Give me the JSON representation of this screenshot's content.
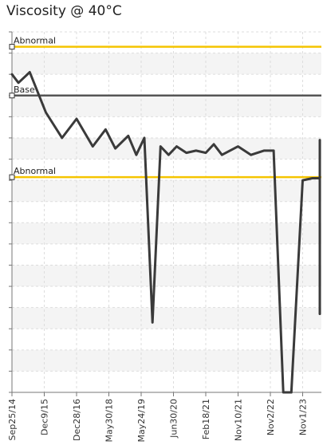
{
  "title": "Viscosity @ 40°C",
  "chart_data": {
    "type": "line",
    "title": "Viscosity @ 40°C",
    "xlabel": "",
    "ylabel": "",
    "grid": true,
    "legend": "none",
    "x_tick_labels": [
      "Sep25/14",
      "Dec9/15",
      "Dec28/16",
      "May30/18",
      "May24/19",
      "Jun30/20",
      "Feb18/21",
      "Nov10/21",
      "Nov2/22",
      "Nov1/23"
    ],
    "ylim": [
      0,
      17
    ],
    "thresholds": [
      {
        "label": "Abnormal",
        "value": 16.3,
        "color": "#f5c400"
      },
      {
        "label": "Base",
        "value": 14.0,
        "color": "#555555"
      },
      {
        "label": "Abnormal",
        "value": 10.15,
        "color": "#f5c400"
      }
    ],
    "series_color": "#3a3a3a",
    "series": [
      {
        "x": [
          0.0,
          0.2,
          0.55,
          1.05,
          1.55,
          2.0,
          2.5,
          2.9,
          3.2,
          3.6,
          3.85,
          4.1,
          4.35,
          4.6,
          4.85,
          5.1,
          5.4,
          5.7,
          6.0,
          6.25,
          6.5,
          7.0,
          7.4,
          7.8,
          8.1,
          8.4,
          8.65,
          9.0,
          9.3,
          9.6,
          9.9,
          10.2,
          10.5,
          10.8,
          11.1,
          11.4,
          11.7,
          12.0,
          12.4,
          12.8,
          13.1,
          13.4,
          13.7,
          14.0,
          14.25,
          14.5
        ],
        "y": [
          15.0,
          14.6,
          15.1,
          13.2,
          12.0,
          12.9,
          11.6,
          12.4,
          11.5,
          12.1,
          11.2,
          12.0,
          3.3,
          11.6,
          11.2,
          11.6,
          11.3,
          11.4,
          11.3,
          11.7,
          11.2,
          11.6,
          11.2,
          11.4,
          11.4,
          0.0,
          0.0,
          10.0,
          10.1,
          10.1,
          9.9,
          4.4,
          11.9,
          3.7,
          11.4,
          11.8,
          11.5,
          11.4,
          11.4,
          11.4,
          11.4,
          11.4,
          11.4,
          11.4,
          11.4,
          11.35
        ]
      }
    ]
  }
}
